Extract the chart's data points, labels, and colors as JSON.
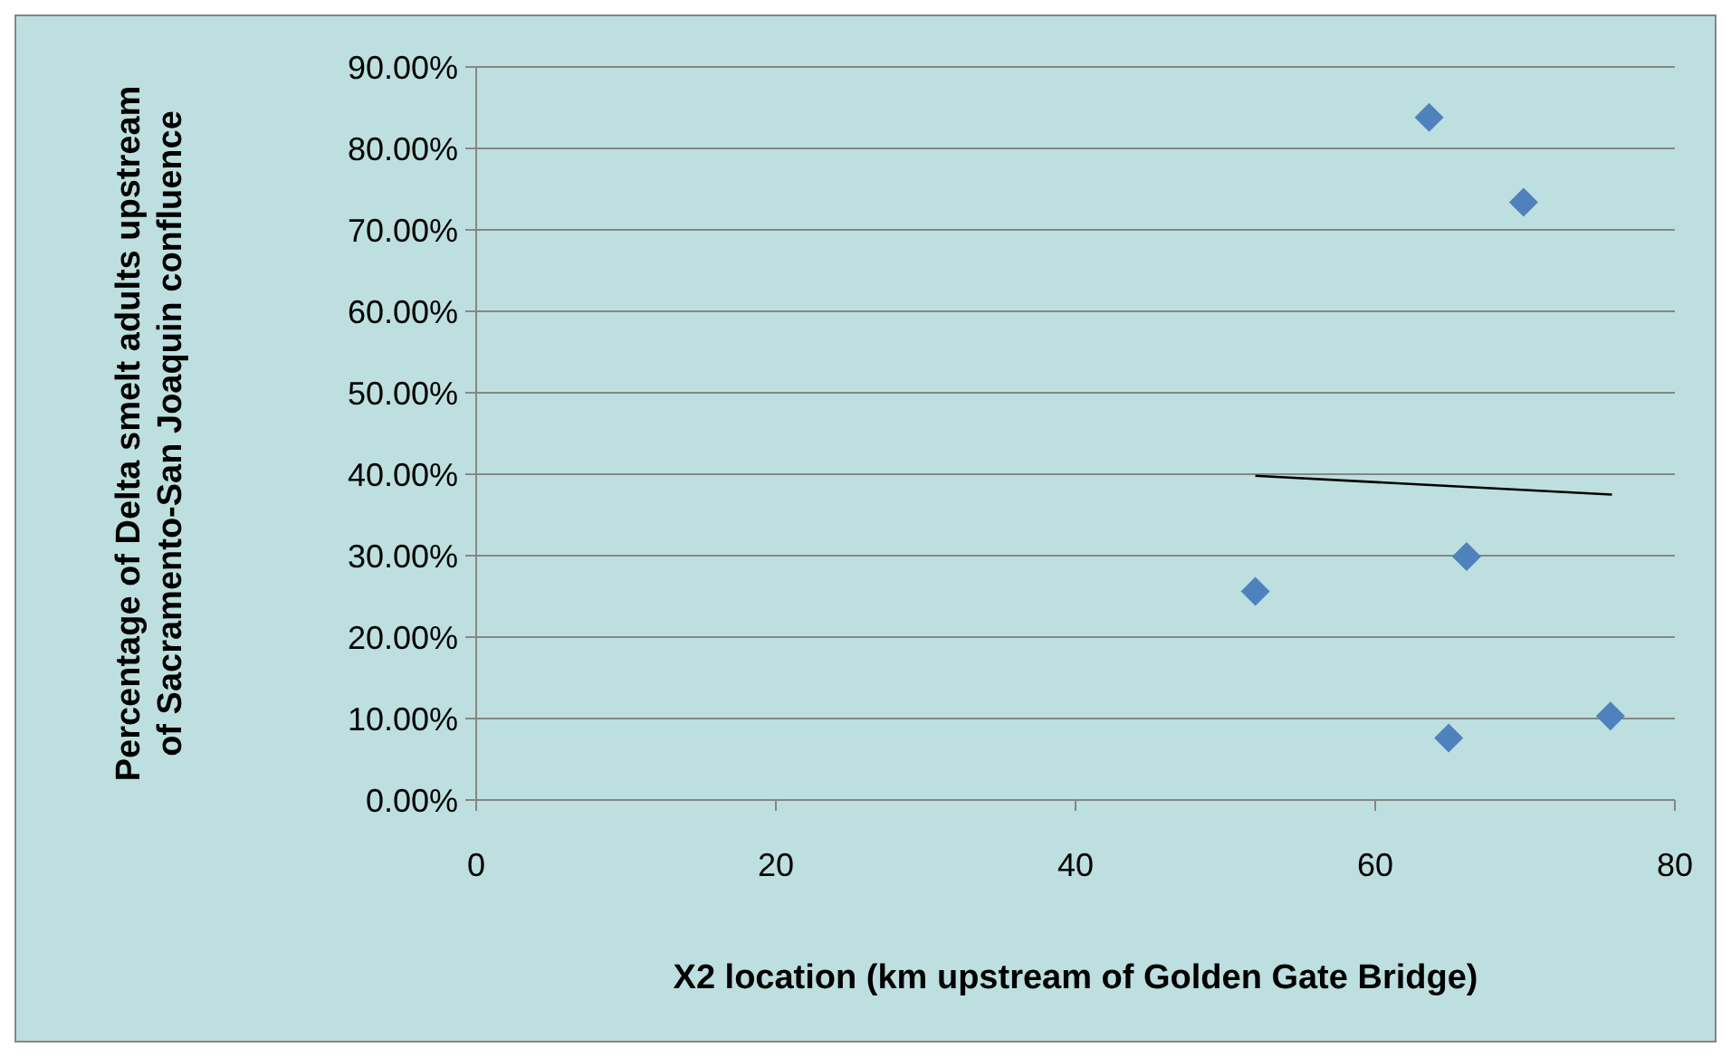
{
  "chart_data": {
    "type": "scatter",
    "xlabel": "X2 location (km upstream of Golden Gate Bridge)",
    "ylabel": "Percentage of Delta smelt adults upstream of Sacramento-San Joaquin confluence",
    "xlim": [
      0,
      80
    ],
    "xticks": [
      0,
      20,
      40,
      60,
      80
    ],
    "ylim": [
      0,
      90
    ],
    "yticks": [
      {
        "value": 0,
        "label": "0.00%"
      },
      {
        "value": 10,
        "label": "10.00%"
      },
      {
        "value": 20,
        "label": "20.00%"
      },
      {
        "value": 30,
        "label": "30.00%"
      },
      {
        "value": 40,
        "label": "40.00%"
      },
      {
        "value": 50,
        "label": "50.00%"
      },
      {
        "value": 60,
        "label": "60.00%"
      },
      {
        "value": 70,
        "label": "70.00%"
      },
      {
        "value": 80,
        "label": "80.00%"
      },
      {
        "value": 90,
        "label": "90.00%"
      }
    ],
    "grid": "y",
    "series": [
      {
        "color": "#4f81bd",
        "marker": "diamond",
        "x": [
          63.6,
          69.9,
          66.1,
          52.0,
          64.9,
          75.7
        ],
        "values": [
          83.8,
          73.4,
          29.9,
          25.6,
          7.6,
          10.3
        ]
      },
      {
        "type": "line",
        "color": "#000000",
        "marker": "none",
        "x": [
          52.0,
          75.8
        ],
        "values": [
          39.8,
          37.5
        ]
      }
    ]
  }
}
